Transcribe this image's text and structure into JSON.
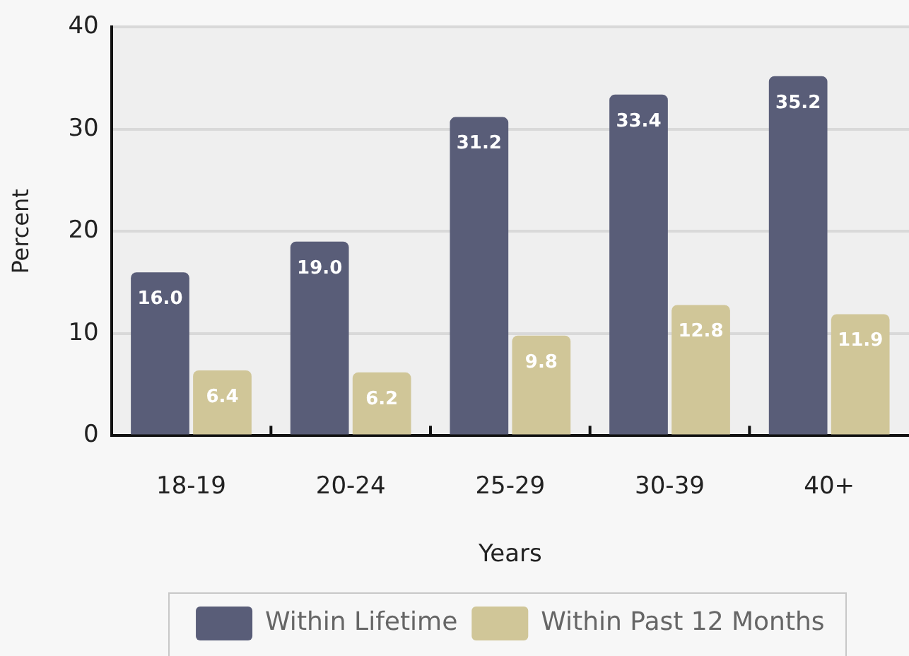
{
  "chart_data": {
    "type": "bar",
    "xlabel": "Years",
    "ylabel": "Percent",
    "categories": [
      "18-19",
      "20-24",
      "25-29",
      "30-39",
      "40+"
    ],
    "series": [
      {
        "name": "Within Lifetime",
        "color": "#595d78",
        "values": [
          16.0,
          19.0,
          31.2,
          33.4,
          35.2
        ],
        "value_labels": [
          "16.0",
          "19.0",
          "31.2",
          "33.4",
          "35.2"
        ]
      },
      {
        "name": "Within Past 12 Months",
        "color": "#d0c698",
        "values": [
          6.4,
          6.2,
          9.8,
          12.8,
          11.9
        ],
        "value_labels": [
          "6.4",
          "6.2",
          "9.8",
          "12.8",
          "11.9"
        ]
      }
    ],
    "ylim": [
      0,
      40
    ],
    "yticks": [
      0,
      10,
      20,
      30,
      40
    ],
    "grid": "y",
    "legend": "bottom"
  }
}
